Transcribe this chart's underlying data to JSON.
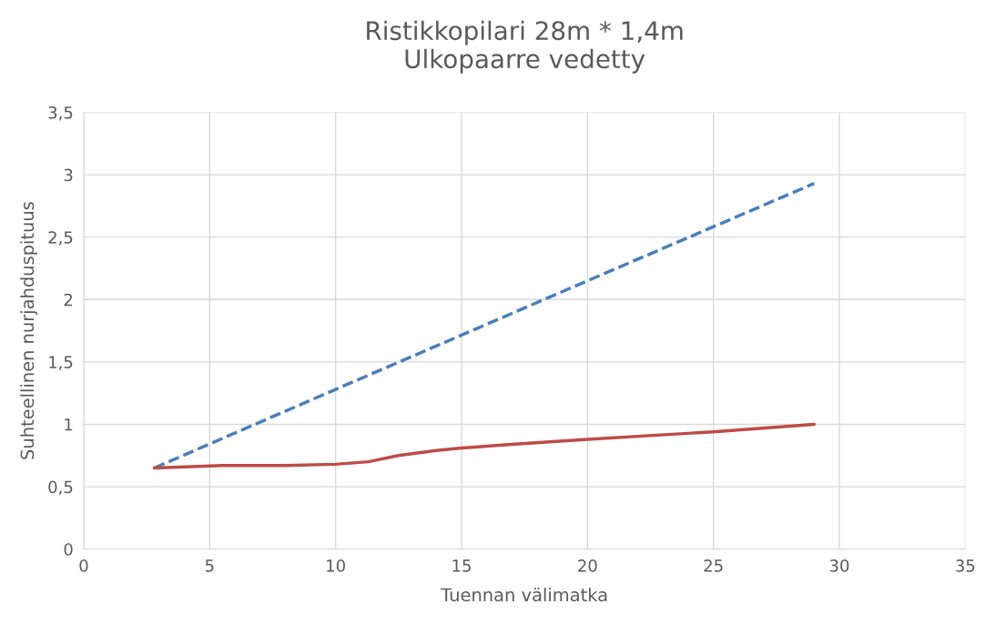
{
  "chart_data": {
    "type": "line",
    "title": "Ristikkopilari 28m * 1,4m\nUlkopaarre vedetty",
    "xlabel": "Tuennan välimatka",
    "ylabel": "Suhteellinen nurjahduspituus",
    "series": [
      {
        "color": "#4a7ebb",
        "line_style": "dashed",
        "x": [
          2.8,
          10,
          20,
          29
        ],
        "values": [
          0.65,
          1.28,
          2.15,
          2.93
        ]
      },
      {
        "color": "#be4b48",
        "line_style": "solid",
        "x": [
          2.8,
          5.5,
          8,
          10,
          11.3,
          12.5,
          14,
          15,
          17,
          20,
          25,
          29
        ],
        "values": [
          0.65,
          0.67,
          0.67,
          0.68,
          0.7,
          0.75,
          0.79,
          0.81,
          0.84,
          0.88,
          0.94,
          1.0
        ]
      }
    ],
    "xlim": [
      0,
      35
    ],
    "xticks": [
      0,
      5,
      10,
      15,
      20,
      25,
      30,
      35
    ],
    "ylim": [
      0,
      3.5
    ],
    "yticks": [
      0,
      {
        "value": 0.5,
        "label": "0,5"
      },
      1,
      {
        "value": 1.5,
        "label": "1,5"
      },
      2,
      {
        "value": 2.5,
        "label": "2,5"
      },
      3,
      {
        "value": 3.5,
        "label": "3,5"
      }
    ],
    "grid": true,
    "marker": "none"
  }
}
